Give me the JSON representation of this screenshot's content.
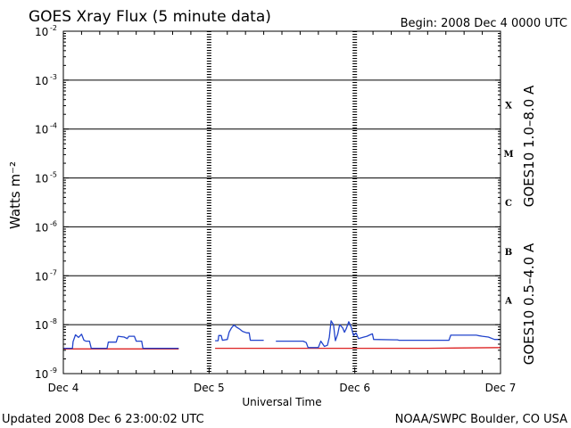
{
  "chart_data": {
    "type": "line",
    "title": "GOES Xray Flux (5 minute data)",
    "begin": "Begin:  2008 Dec 4 0000 UTC",
    "updated": "Updated 2008 Dec  6 23:00:02 UTC",
    "credit": "NOAA/SWPC Boulder, CO USA",
    "xlabel": "Universal Time",
    "ylabel": "Watts m⁻²",
    "x_ticks": [
      "Dec 4",
      "Dec 5",
      "Dec 6",
      "Dec 7"
    ],
    "x_range_hours": [
      0,
      72
    ],
    "ylim": [
      1e-09,
      0.01
    ],
    "yscale": "log",
    "y_ticks": [
      {
        "base": "10",
        "exp": "-9",
        "value": 1e-09
      },
      {
        "base": "10",
        "exp": "-8",
        "value": 1e-08
      },
      {
        "base": "10",
        "exp": "-7",
        "value": 1e-07
      },
      {
        "base": "10",
        "exp": "-6",
        "value": 1e-06
      },
      {
        "base": "10",
        "exp": "-5",
        "value": 1e-05
      },
      {
        "base": "10",
        "exp": "-4",
        "value": 0.0001
      },
      {
        "base": "10",
        "exp": "-3",
        "value": 0.001
      },
      {
        "base": "10",
        "exp": "-2",
        "value": 0.01
      }
    ],
    "flare_classes": [
      {
        "label": "A",
        "value": 1e-08
      },
      {
        "label": "B",
        "value": 1e-07
      },
      {
        "label": "C",
        "value": 1e-06
      },
      {
        "label": "M",
        "value": 1e-05
      },
      {
        "label": "X",
        "value": 0.0001
      }
    ],
    "series": [
      {
        "name": "GOES10 1.0–8.0 A",
        "color": "#dd2222",
        "segments": [
          [
            [
              0,
              3.2e-09
            ],
            [
              13,
              3.2e-09
            ],
            [
              19,
              3.2e-09
            ]
          ],
          [
            [
              25,
              3.3e-09
            ],
            [
              34,
              3.3e-09
            ],
            [
              40,
              3.3e-09
            ],
            [
              52,
              3.3e-09
            ],
            [
              60,
              3.3e-09
            ],
            [
              72,
              3.4e-09
            ]
          ]
        ]
      },
      {
        "name": "GOES10 0.5–4.0 A",
        "color": "#2244cc",
        "segments": [
          [
            [
              0,
              3.3e-09
            ],
            [
              1.5,
              3.3e-09
            ],
            [
              1.6,
              4.5e-09
            ],
            [
              2.0,
              6.2e-09
            ],
            [
              2.5,
              5.5e-09
            ],
            [
              3.0,
              6.4e-09
            ],
            [
              3.4,
              4.8e-09
            ],
            [
              3.7,
              4.6e-09
            ],
            [
              4.3,
              4.6e-09
            ],
            [
              4.6,
              3.3e-09
            ],
            [
              7.2,
              3.3e-09
            ],
            [
              7.4,
              4.4e-09
            ],
            [
              8.2,
              4.4e-09
            ],
            [
              8.7,
              4.4e-09
            ],
            [
              9.0,
              5.8e-09
            ],
            [
              10.0,
              5.6e-09
            ],
            [
              10.5,
              5.2e-09
            ],
            [
              10.8,
              5.8e-09
            ],
            [
              11.7,
              5.8e-09
            ],
            [
              12.0,
              4.6e-09
            ],
            [
              12.9,
              4.6e-09
            ],
            [
              13.1,
              3.3e-09
            ],
            [
              19,
              3.3e-09
            ]
          ],
          [
            [
              25,
              4.7e-09
            ],
            [
              25.5,
              4.7e-09
            ],
            [
              25.6,
              6e-09
            ],
            [
              26.0,
              6e-09
            ],
            [
              26.2,
              4.8e-09
            ],
            [
              27.0,
              5e-09
            ],
            [
              27.3,
              7e-09
            ],
            [
              27.7,
              8.6e-09
            ],
            [
              28.1,
              9.8e-09
            ],
            [
              28.6,
              8.8e-09
            ],
            [
              29.0,
              8.2e-09
            ],
            [
              29.5,
              7.3e-09
            ],
            [
              30.2,
              6.8e-09
            ],
            [
              30.6,
              6.8e-09
            ],
            [
              30.8,
              4.8e-09
            ],
            [
              33.0,
              4.8e-09
            ]
          ],
          [
            [
              35,
              4.6e-09
            ],
            [
              39.5,
              4.6e-09
            ],
            [
              40.0,
              4.3e-09
            ],
            [
              40.3,
              3.4e-09
            ],
            [
              42.0,
              3.4e-09
            ],
            [
              42.4,
              4.6e-09
            ],
            [
              43.0,
              3.6e-09
            ],
            [
              43.5,
              3.8e-09
            ],
            [
              43.8,
              5.5e-09
            ],
            [
              44.1,
              1.2e-08
            ],
            [
              44.5,
              1e-08
            ],
            [
              44.8,
              4.7e-09
            ],
            [
              45.2,
              6.5e-09
            ],
            [
              45.5,
              1e-08
            ],
            [
              46.0,
              8.6e-09
            ],
            [
              46.3,
              7e-09
            ],
            [
              46.6,
              8.3e-09
            ],
            [
              47.0,
              1.15e-08
            ],
            [
              47.4,
              9e-09
            ],
            [
              47.8,
              6e-09
            ],
            [
              48.2,
              6.8e-09
            ],
            [
              48.6,
              5.2e-09
            ],
            [
              49.5,
              5.6e-09
            ],
            [
              50.0,
              5.8e-09
            ],
            [
              50.5,
              6.2e-09
            ],
            [
              50.9,
              6.5e-09
            ],
            [
              51.1,
              5e-09
            ],
            [
              54.5,
              4.9e-09
            ],
            [
              55.0,
              4.9e-09
            ],
            [
              55.3,
              4.8e-09
            ],
            [
              63.5,
              4.8e-09
            ],
            [
              63.8,
              6.1e-09
            ],
            [
              68.0,
              6.1e-09
            ],
            [
              68.3,
              6e-09
            ],
            [
              69.0,
              5.8e-09
            ],
            [
              70.0,
              5.6e-09
            ],
            [
              71.0,
              5e-09
            ],
            [
              72,
              5e-09
            ]
          ]
        ]
      }
    ],
    "grid": true
  }
}
